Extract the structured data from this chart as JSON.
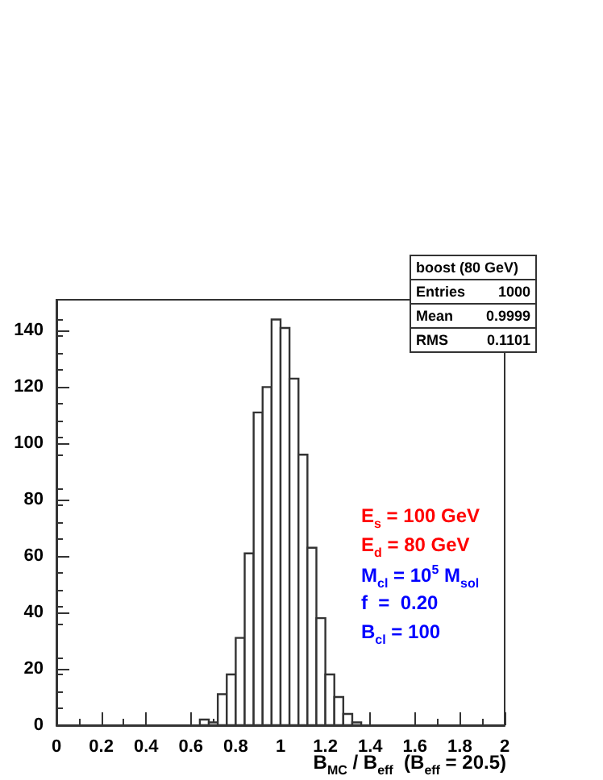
{
  "chart_data": {
    "type": "histogram",
    "color": "#333333",
    "bins": [
      0.64,
      0.68,
      0.72,
      0.76,
      0.8,
      0.84,
      0.88,
      0.92,
      0.96,
      1.0,
      1.04,
      1.08,
      1.12,
      1.16,
      1.2,
      1.24,
      1.28,
      1.32,
      1.36
    ],
    "values": [
      2,
      1,
      11,
      18,
      31,
      61,
      111,
      120,
      144,
      141,
      123,
      96,
      63,
      38,
      18,
      10,
      4,
      1
    ],
    "xlabel": "B$_{MC}$ / B$_{eff}$  (B$_{eff}$ = 20.5)",
    "xlim": [
      0,
      2
    ],
    "xticks": [
      0,
      0.2,
      0.4,
      0.6,
      0.8,
      1,
      1.2,
      1.4,
      1.6,
      1.8,
      2
    ],
    "ylim": [
      0,
      151
    ],
    "yticks": [
      0,
      20,
      40,
      60,
      80,
      100,
      120,
      140
    ],
    "grid": false,
    "annotations": [
      "boost (80 GeV)",
      "Entries 1000",
      "Mean 0.9999",
      "RMS 0.1101",
      "E$_{s}$ = 100 GeV",
      "E$_{d}$ = 80 GeV",
      "M$_{cl}$ = 10$^{5}$ M$_{sol}$",
      "f  =  0.20",
      "B$_{cl}$ = 100"
    ]
  }
}
